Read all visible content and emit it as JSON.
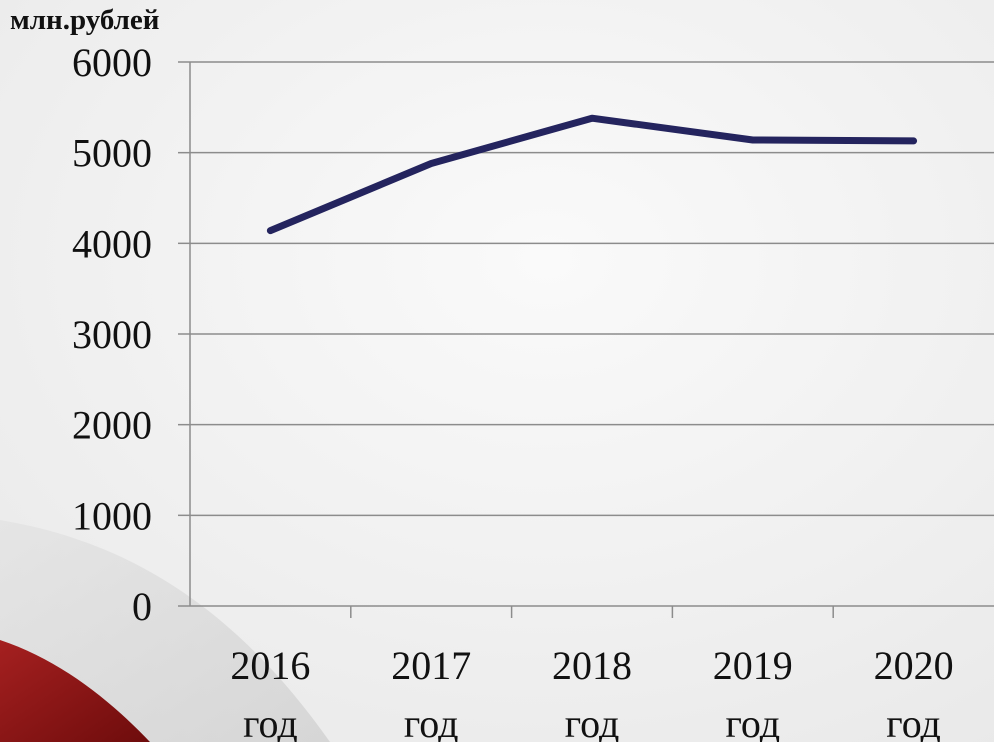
{
  "colors": {
    "background": "#f3f3f3",
    "accent": "#8b1414",
    "line": "#24245e",
    "grid": "#8c8c8c",
    "text": "#111111"
  },
  "chart_data": {
    "type": "line",
    "unit_label": "млн.рублей",
    "categories": [
      [
        "2016",
        "год"
      ],
      [
        "2017",
        "год"
      ],
      [
        "2018",
        "год"
      ],
      [
        "2019",
        "год"
      ],
      [
        "2020",
        "год"
      ]
    ],
    "series": [
      {
        "values": [
          4140,
          4880,
          5380,
          5140,
          5130
        ]
      }
    ],
    "yticks": [
      0,
      1000,
      2000,
      3000,
      4000,
      5000,
      6000
    ],
    "ylim": [
      0,
      6000
    ],
    "grid": true,
    "legend": "none"
  }
}
